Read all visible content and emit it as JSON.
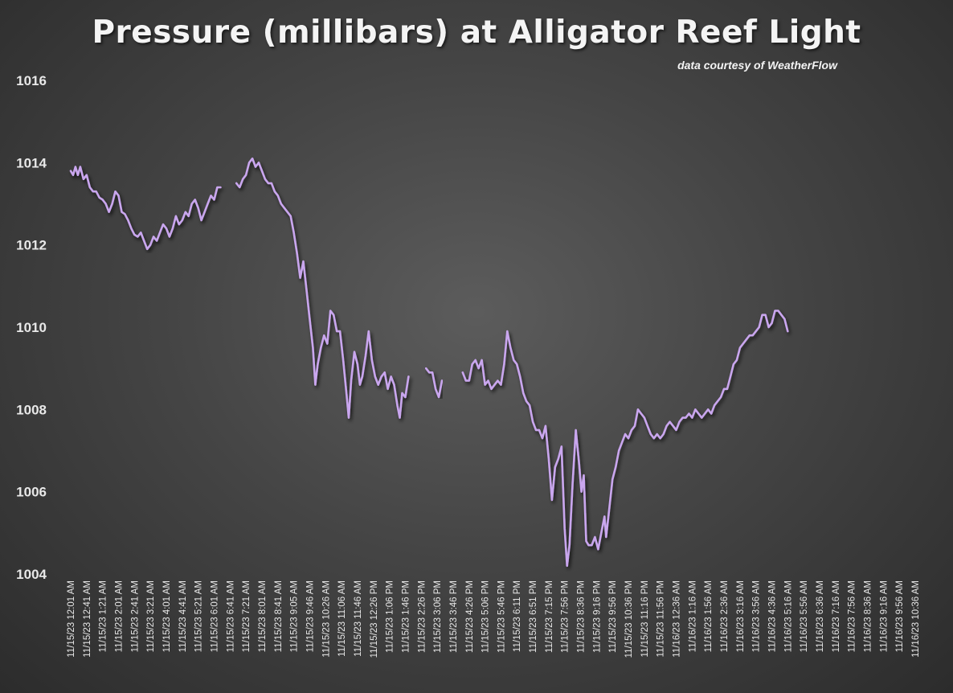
{
  "chart_data": {
    "type": "line",
    "title": "Pressure (millibars) at Alligator Reef Light",
    "subtitle": "data courtesy of WeatherFlow",
    "xlabel": "",
    "ylabel": "",
    "ylim": [
      1004,
      1016
    ],
    "yticks": [
      1004,
      1006,
      1008,
      1010,
      1012,
      1014,
      1016
    ],
    "grid": true,
    "legend": "none",
    "line_color": "#c9a6ee",
    "x_tick_labels": [
      "11/15/23 12:01 AM",
      "11/15/23 12:41 AM",
      "11/15/23 1:21 AM",
      "11/15/23 2:01 AM",
      "11/15/23 2:41 AM",
      "11/15/23 3:21 AM",
      "11/15/23 4:01 AM",
      "11/15/23 4:41 AM",
      "11/15/23 5:21 AM",
      "11/15/23 6:01 AM",
      "11/15/23 6:41 AM",
      "11/15/23 7:21 AM",
      "11/15/23 8:01 AM",
      "11/15/23 8:41 AM",
      "11/15/23 9:05 AM",
      "11/15/23 9:46 AM",
      "11/15/23 10:26 AM",
      "11/15/23 11:06 AM",
      "11/15/23 11:46 AM",
      "11/15/23 12:26 PM",
      "11/15/23 1:06 PM",
      "11/15/23 1:46 PM",
      "11/15/23 2:26 PM",
      "11/15/23 3:06 PM",
      "11/15/23 3:46 PM",
      "11/15/23 4:26 PM",
      "11/15/23 5:06 PM",
      "11/15/23 5:46 PM",
      "11/15/23 6:11 PM",
      "11/15/23 6:51 PM",
      "11/15/23 7:15 PM",
      "11/15/23 7:56 PM",
      "11/15/23 8:36 PM",
      "11/15/23 9:16 PM",
      "11/15/23 9:56 PM",
      "11/15/23 10:36 PM",
      "11/15/23 11:16 PM",
      "11/15/23 11:56 PM",
      "11/16/23 12:36 AM",
      "11/16/23 1:16 AM",
      "11/16/23 1:56 AM",
      "11/16/23 2:36 AM",
      "11/16/23 3:16 AM",
      "11/16/23 3:56 AM",
      "11/16/23 4:36 AM",
      "11/16/23 5:16 AM",
      "11/16/23 5:56 AM",
      "11/16/23 6:36 AM",
      "11/16/23 7:16 AM",
      "11/16/23 7:56 AM",
      "11/16/23 8:36 AM",
      "11/16/23 9:16 AM",
      "11/16/23 9:56 AM",
      "11/16/23 10:36 AM"
    ],
    "x_end": 54.3,
    "series": [
      {
        "values": [
          [
            0,
            1013.8
          ],
          [
            0.15,
            1013.7
          ],
          [
            0.3,
            1013.9
          ],
          [
            0.45,
            1013.7
          ],
          [
            0.6,
            1013.9
          ],
          [
            0.8,
            1013.6
          ],
          [
            1.0,
            1013.7
          ],
          [
            1.2,
            1013.4
          ],
          [
            1.4,
            1013.3
          ],
          [
            1.6,
            1013.3
          ],
          [
            1.8,
            1013.15
          ],
          [
            2.0,
            1013.1
          ],
          [
            2.2,
            1013.0
          ],
          [
            2.4,
            1012.8
          ],
          [
            2.6,
            1013.0
          ],
          [
            2.8,
            1013.3
          ],
          [
            3.0,
            1013.2
          ],
          [
            3.2,
            1012.8
          ],
          [
            3.4,
            1012.75
          ],
          [
            3.6,
            1012.6
          ],
          [
            3.8,
            1012.4
          ],
          [
            4.0,
            1012.25
          ],
          [
            4.2,
            1012.2
          ],
          [
            4.4,
            1012.3
          ],
          [
            4.6,
            1012.1
          ],
          [
            4.8,
            1011.9
          ],
          [
            5.0,
            1012.0
          ],
          [
            5.2,
            1012.2
          ],
          [
            5.4,
            1012.1
          ],
          [
            5.6,
            1012.3
          ],
          [
            5.8,
            1012.5
          ],
          [
            6.0,
            1012.4
          ],
          [
            6.2,
            1012.2
          ],
          [
            6.4,
            1012.4
          ],
          [
            6.6,
            1012.7
          ],
          [
            6.8,
            1012.5
          ],
          [
            7.0,
            1012.6
          ],
          [
            7.2,
            1012.8
          ],
          [
            7.4,
            1012.7
          ],
          [
            7.6,
            1013.0
          ],
          [
            7.8,
            1013.1
          ],
          [
            8.0,
            1012.9
          ],
          [
            8.2,
            1012.6
          ],
          [
            8.4,
            1012.8
          ],
          [
            8.6,
            1013.0
          ],
          [
            8.8,
            1013.2
          ],
          [
            9.0,
            1013.1
          ],
          [
            9.2,
            1013.4
          ],
          [
            9.4,
            1013.4
          ],
          null,
          [
            10.4,
            1013.5
          ],
          [
            10.6,
            1013.4
          ],
          [
            10.8,
            1013.6
          ],
          [
            11.0,
            1013.7
          ],
          [
            11.2,
            1014.0
          ],
          [
            11.4,
            1014.1
          ],
          [
            11.6,
            1013.9
          ],
          [
            11.8,
            1014.0
          ],
          [
            12.0,
            1013.8
          ],
          [
            12.2,
            1013.6
          ],
          [
            12.4,
            1013.5
          ],
          [
            12.6,
            1013.5
          ],
          [
            12.8,
            1013.3
          ],
          [
            13.0,
            1013.2
          ],
          [
            13.2,
            1013.0
          ],
          [
            13.4,
            1012.9
          ],
          [
            13.6,
            1012.8
          ],
          [
            13.8,
            1012.7
          ],
          [
            14.0,
            1012.3
          ],
          [
            14.2,
            1011.8
          ],
          [
            14.4,
            1011.2
          ],
          [
            14.6,
            1011.6
          ],
          [
            14.8,
            1010.9
          ],
          [
            15.0,
            1010.2
          ],
          [
            15.2,
            1009.5
          ],
          [
            15.35,
            1008.6
          ],
          [
            15.5,
            1009.1
          ],
          [
            15.7,
            1009.5
          ],
          [
            15.9,
            1009.8
          ],
          [
            16.1,
            1009.6
          ],
          [
            16.3,
            1010.4
          ],
          [
            16.5,
            1010.3
          ],
          [
            16.7,
            1009.9
          ],
          [
            16.9,
            1009.9
          ],
          [
            17.1,
            1009.2
          ],
          [
            17.3,
            1008.4
          ],
          [
            17.45,
            1007.8
          ],
          [
            17.6,
            1008.7
          ],
          [
            17.8,
            1009.4
          ],
          [
            18.0,
            1009.1
          ],
          [
            18.15,
            1008.6
          ],
          [
            18.3,
            1008.8
          ],
          [
            18.5,
            1009.3
          ],
          [
            18.7,
            1009.9
          ],
          [
            18.9,
            1009.2
          ],
          [
            19.1,
            1008.8
          ],
          [
            19.3,
            1008.6
          ],
          [
            19.5,
            1008.8
          ],
          [
            19.7,
            1008.9
          ],
          [
            19.9,
            1008.5
          ],
          [
            20.1,
            1008.8
          ],
          [
            20.3,
            1008.6
          ],
          [
            20.5,
            1008.1
          ],
          [
            20.65,
            1007.8
          ],
          [
            20.8,
            1008.4
          ],
          [
            21.0,
            1008.3
          ],
          [
            21.2,
            1008.8
          ],
          null,
          [
            22.3,
            1009.0
          ],
          [
            22.5,
            1008.9
          ],
          [
            22.7,
            1008.9
          ],
          [
            22.9,
            1008.5
          ],
          [
            23.1,
            1008.3
          ],
          [
            23.3,
            1008.7
          ],
          null,
          [
            24.6,
            1008.9
          ],
          [
            24.8,
            1008.7
          ],
          [
            25.0,
            1008.7
          ],
          [
            25.2,
            1009.1
          ],
          [
            25.4,
            1009.2
          ],
          [
            25.6,
            1009.0
          ],
          [
            25.8,
            1009.2
          ],
          [
            26.0,
            1008.6
          ],
          [
            26.2,
            1008.7
          ],
          [
            26.4,
            1008.5
          ],
          [
            26.6,
            1008.6
          ],
          [
            26.8,
            1008.7
          ],
          [
            27.0,
            1008.6
          ],
          [
            27.2,
            1009.1
          ],
          [
            27.4,
            1009.9
          ],
          [
            27.6,
            1009.5
          ],
          [
            27.8,
            1009.2
          ],
          [
            28.0,
            1009.1
          ],
          [
            28.2,
            1008.8
          ],
          [
            28.4,
            1008.4
          ],
          [
            28.6,
            1008.2
          ],
          [
            28.8,
            1008.1
          ],
          [
            29.0,
            1007.7
          ],
          [
            29.2,
            1007.5
          ],
          [
            29.4,
            1007.5
          ],
          [
            29.6,
            1007.3
          ],
          [
            29.8,
            1007.6
          ],
          [
            30.0,
            1006.8
          ],
          [
            30.2,
            1005.8
          ],
          [
            30.4,
            1006.6
          ],
          [
            30.6,
            1006.8
          ],
          [
            30.8,
            1007.1
          ],
          [
            31.0,
            1005.1
          ],
          [
            31.15,
            1004.2
          ],
          [
            31.3,
            1004.7
          ],
          [
            31.5,
            1006.2
          ],
          [
            31.7,
            1007.5
          ],
          [
            31.9,
            1006.7
          ],
          [
            32.05,
            1006.0
          ],
          [
            32.2,
            1006.4
          ],
          [
            32.35,
            1004.8
          ],
          [
            32.5,
            1004.7
          ],
          [
            32.7,
            1004.7
          ],
          [
            32.9,
            1004.9
          ],
          [
            33.1,
            1004.6
          ],
          [
            33.3,
            1005.0
          ],
          [
            33.5,
            1005.4
          ],
          [
            33.6,
            1004.9
          ],
          [
            33.8,
            1005.6
          ],
          [
            34.0,
            1006.3
          ],
          [
            34.2,
            1006.6
          ],
          [
            34.4,
            1007.0
          ],
          [
            34.6,
            1007.2
          ],
          [
            34.8,
            1007.4
          ],
          [
            35.0,
            1007.3
          ],
          [
            35.2,
            1007.5
          ],
          [
            35.4,
            1007.6
          ],
          [
            35.6,
            1008.0
          ],
          [
            35.8,
            1007.9
          ],
          [
            36.0,
            1007.8
          ],
          [
            36.2,
            1007.6
          ],
          [
            36.4,
            1007.4
          ],
          [
            36.6,
            1007.3
          ],
          [
            36.8,
            1007.4
          ],
          [
            37.0,
            1007.3
          ],
          [
            37.2,
            1007.4
          ],
          [
            37.4,
            1007.6
          ],
          [
            37.6,
            1007.7
          ],
          [
            37.8,
            1007.6
          ],
          [
            38.0,
            1007.5
          ],
          [
            38.2,
            1007.7
          ],
          [
            38.4,
            1007.8
          ],
          [
            38.6,
            1007.8
          ],
          [
            38.8,
            1007.9
          ],
          [
            39.0,
            1007.8
          ],
          [
            39.2,
            1008.0
          ],
          [
            39.4,
            1007.9
          ],
          [
            39.6,
            1007.8
          ],
          [
            39.8,
            1007.9
          ],
          [
            40.0,
            1008.0
          ],
          [
            40.2,
            1007.9
          ],
          [
            40.4,
            1008.1
          ],
          [
            40.6,
            1008.2
          ],
          [
            40.8,
            1008.3
          ],
          [
            41.0,
            1008.5
          ],
          [
            41.2,
            1008.5
          ],
          [
            41.4,
            1008.8
          ],
          [
            41.6,
            1009.1
          ],
          [
            41.8,
            1009.2
          ],
          [
            42.0,
            1009.5
          ],
          [
            42.2,
            1009.6
          ],
          [
            42.4,
            1009.7
          ],
          [
            42.6,
            1009.8
          ],
          [
            42.8,
            1009.8
          ],
          [
            43.0,
            1009.9
          ],
          [
            43.2,
            1010.0
          ],
          [
            43.4,
            1010.3
          ],
          [
            43.6,
            1010.3
          ],
          [
            43.8,
            1010.0
          ],
          [
            44.0,
            1010.1
          ],
          [
            44.2,
            1010.4
          ],
          [
            44.4,
            1010.4
          ],
          [
            44.6,
            1010.3
          ],
          [
            44.8,
            1010.2
          ],
          [
            45.0,
            1009.9
          ]
        ]
      }
    ]
  }
}
